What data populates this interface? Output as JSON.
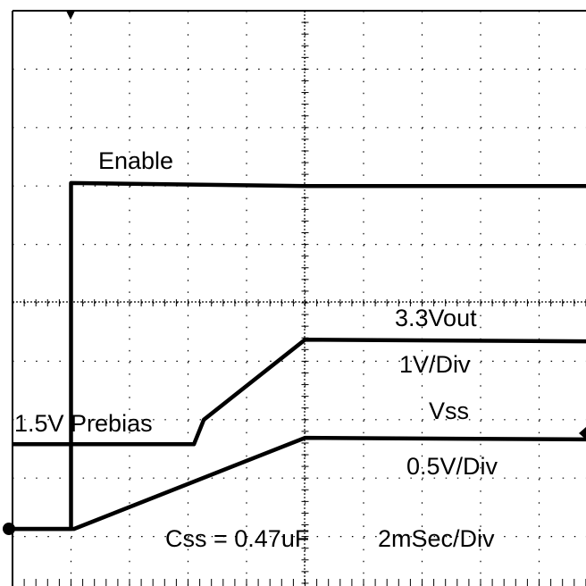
{
  "chart_data": {
    "type": "line",
    "xlim": [
      0,
      10
    ],
    "ylim": [
      0,
      10
    ],
    "xticks": [
      0,
      1,
      2,
      3,
      4,
      5,
      6,
      7,
      8,
      9,
      10
    ],
    "yticks": [
      0,
      1,
      2,
      3,
      4,
      5,
      6,
      7,
      8,
      9,
      10
    ],
    "grid": true,
    "series": [
      {
        "color": "#000000",
        "x": [
          0,
          1,
          1,
          5,
          10
        ],
        "values": [
          1.13,
          1.13,
          7.05,
          7.0,
          7.0
        ]
      },
      {
        "color": "#000000",
        "x": [
          0,
          3.1,
          3.27,
          5,
          10
        ],
        "values": [
          2.58,
          2.58,
          3.0,
          4.37,
          4.34
        ]
      },
      {
        "color": "#000000",
        "x": [
          0,
          1.05,
          5,
          10
        ],
        "values": [
          1.13,
          1.13,
          2.69,
          2.66
        ]
      }
    ],
    "annotations": [
      "Enable",
      "3.3Vout",
      "1V/Div",
      "Vss",
      "1.5V Prebias",
      "0.5V/Div",
      "Css = 0.47uF",
      "2mSec/Div"
    ]
  }
}
